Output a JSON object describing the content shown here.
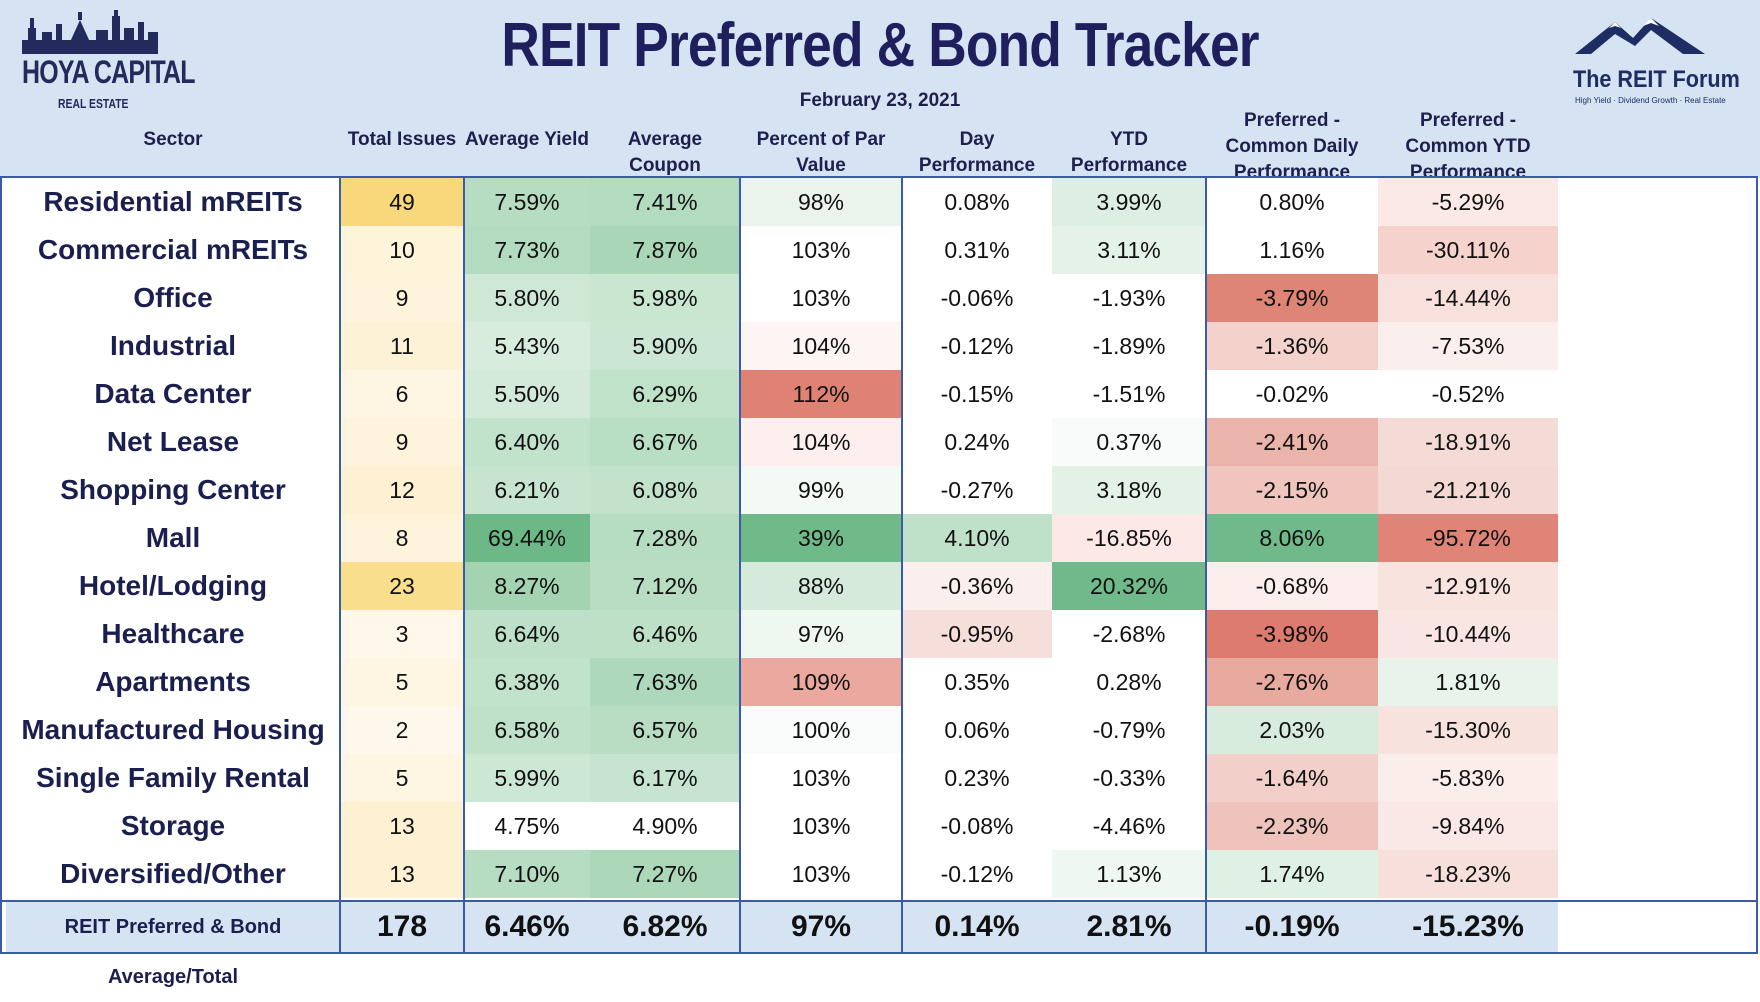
{
  "header": {
    "title": "REIT Preferred & Bond Tracker",
    "date": "February 23, 2021",
    "logo_left_line1": "HOYA CAPITAL",
    "logo_left_line2": "REAL ESTATE",
    "logo_right_line1": "The REIT Forum",
    "logo_right_line2": "High Yield · Dividend Growth · Real Estate"
  },
  "colors": {
    "header_bg": "#d5e3f3",
    "border": "#3b5aa8",
    "title": "#1f1f5e",
    "green_strong": "#6fb98a",
    "red_strong": "#dd7b6e",
    "yellow_strong": "#f8d574"
  },
  "chart_data": {
    "type": "table",
    "columns": [
      "Sector",
      "Total Issues",
      "Average Yield",
      "Average Coupon",
      "Percent of Par Value",
      "Day Performance",
      "YTD Performance",
      "Preferred - Common Daily Performance",
      "Preferred - Common YTD Performance"
    ],
    "rows": [
      [
        "Residential mREITs",
        "49",
        "7.59%",
        "7.41%",
        "98%",
        "0.08%",
        "3.99%",
        "0.80%",
        "-5.29%"
      ],
      [
        "Commercial mREITs",
        "10",
        "7.73%",
        "7.87%",
        "103%",
        "0.31%",
        "3.11%",
        "1.16%",
        "-30.11%"
      ],
      [
        "Office",
        "9",
        "5.80%",
        "5.98%",
        "103%",
        "-0.06%",
        "-1.93%",
        "-3.79%",
        "-14.44%"
      ],
      [
        "Industrial",
        "11",
        "5.43%",
        "5.90%",
        "104%",
        "-0.12%",
        "-1.89%",
        "-1.36%",
        "-7.53%"
      ],
      [
        "Data Center",
        "6",
        "5.50%",
        "6.29%",
        "112%",
        "-0.15%",
        "-1.51%",
        "-0.02%",
        "-0.52%"
      ],
      [
        "Net Lease",
        "9",
        "6.40%",
        "6.67%",
        "104%",
        "0.24%",
        "0.37%",
        "-2.41%",
        "-18.91%"
      ],
      [
        "Shopping Center",
        "12",
        "6.21%",
        "6.08%",
        "99%",
        "-0.27%",
        "3.18%",
        "-2.15%",
        "-21.21%"
      ],
      [
        "Mall",
        "8",
        "69.44%",
        "7.28%",
        "39%",
        "4.10%",
        "-16.85%",
        "8.06%",
        "-95.72%"
      ],
      [
        "Hotel/Lodging",
        "23",
        "8.27%",
        "7.12%",
        "88%",
        "-0.36%",
        "20.32%",
        "-0.68%",
        "-12.91%"
      ],
      [
        "Healthcare",
        "3",
        "6.64%",
        "6.46%",
        "97%",
        "-0.95%",
        "-2.68%",
        "-3.98%",
        "-10.44%"
      ],
      [
        "Apartments",
        "5",
        "6.38%",
        "7.63%",
        "109%",
        "0.35%",
        "0.28%",
        "-2.76%",
        "1.81%"
      ],
      [
        "Manufactured Housing",
        "2",
        "6.58%",
        "6.57%",
        "100%",
        "0.06%",
        "-0.79%",
        "2.03%",
        "-15.30%"
      ],
      [
        "Single Family Rental",
        "5",
        "5.99%",
        "6.17%",
        "103%",
        "0.23%",
        "-0.33%",
        "-1.64%",
        "-5.83%"
      ],
      [
        "Storage",
        "13",
        "4.75%",
        "4.90%",
        "103%",
        "-0.08%",
        "-4.46%",
        "-2.23%",
        "-9.84%"
      ],
      [
        "Diversified/Other",
        "13",
        "7.10%",
        "7.27%",
        "103%",
        "-0.12%",
        "1.13%",
        "1.74%",
        "-18.23%"
      ]
    ],
    "footer": [
      "REIT Preferred & Bond Average/Total",
      "178",
      "6.46%",
      "6.82%",
      "97%",
      "0.14%",
      "2.81%",
      "-0.19%",
      "-15.23%"
    ],
    "cell_colors": [
      [
        "#ffffff",
        "#f8d87a",
        "#b6dcc1",
        "#b3dbbf",
        "#eaf4ec",
        "#ffffff",
        "#dcefe2",
        "#ffffff",
        "#fbe9e6"
      ],
      [
        "#ffffff",
        "#fef4d9",
        "#b3dbbf",
        "#a9d6b7",
        "#ffffff",
        "#ffffff",
        "#e4f2e8",
        "#ffffff",
        "#f5d2cc"
      ],
      [
        "#ffffff",
        "#fef4dc",
        "#cfe8d6",
        "#c9e6d1",
        "#ffffff",
        "#ffffff",
        "#ffffff",
        "#de8576",
        "#f8e0dc"
      ],
      [
        "#ffffff",
        "#fef2d6",
        "#d8ecde",
        "#cbe6d3",
        "#fdf5f4",
        "#ffffff",
        "#ffffff",
        "#f3d2cc",
        "#fbefed"
      ],
      [
        "#ffffff",
        "#fef6e3",
        "#d3e9d9",
        "#bfe2c9",
        "#df8274",
        "#ffffff",
        "#ffffff",
        "#ffffff",
        "#ffffff"
      ],
      [
        "#ffffff",
        "#fef4dc",
        "#c1e2cb",
        "#b8dec3",
        "#fcefee",
        "#ffffff",
        "#f8fbf9",
        "#ebb4aa",
        "#f5dbd6"
      ],
      [
        "#ffffff",
        "#fef1d3",
        "#c6e4cf",
        "#c2e2cb",
        "#f3f9f5",
        "#ffffff",
        "#e3f1e7",
        "#efc5bd",
        "#f4d8d3"
      ],
      [
        "#ffffff",
        "#fef4dc",
        "#6cb887",
        "#b6dcc1",
        "#70ba89",
        "#c0e1c9",
        "#fce9e6",
        "#6fb98a",
        "#df8476"
      ],
      [
        "#ffffff",
        "#f9de8e",
        "#a4d3b2",
        "#b8ddc3",
        "#d5eadb",
        "#fbefed",
        "#6fb98a",
        "#fbeeec",
        "#f8e3df"
      ],
      [
        "#ffffff",
        "#fef8ea",
        "#bee0c8",
        "#bee0c7",
        "#eff7f1",
        "#f6dedb",
        "#ffffff",
        "#dd7b6e",
        "#f9e6e3"
      ],
      [
        "#ffffff",
        "#fef6e3",
        "#c1e2cb",
        "#aed8bb",
        "#eaa89e",
        "#ffffff",
        "#ffffff",
        "#e8aa9f",
        "#e8f3eb"
      ],
      [
        "#ffffff",
        "#fef8ec",
        "#bfe1c9",
        "#b8ddc3",
        "#fafcfb",
        "#ffffff",
        "#ffffff",
        "#d7ecdd",
        "#f8e2de"
      ],
      [
        "#ffffff",
        "#fef6e3",
        "#cde7d5",
        "#c6e4cf",
        "#ffffff",
        "#ffffff",
        "#ffffff",
        "#f2cfc8",
        "#fbedea"
      ],
      [
        "#ffffff",
        "#fef1d3",
        "#ffffff",
        "#ffffff",
        "#ffffff",
        "#ffffff",
        "#ffffff",
        "#eec3bb",
        "#f9e8e5"
      ],
      [
        "#ffffff",
        "#fef1d3",
        "#b6dcc1",
        "#acd7b8",
        "#ffffff",
        "#ffffff",
        "#eef7f1",
        "#dff0e4",
        "#f7e0dc"
      ]
    ]
  }
}
